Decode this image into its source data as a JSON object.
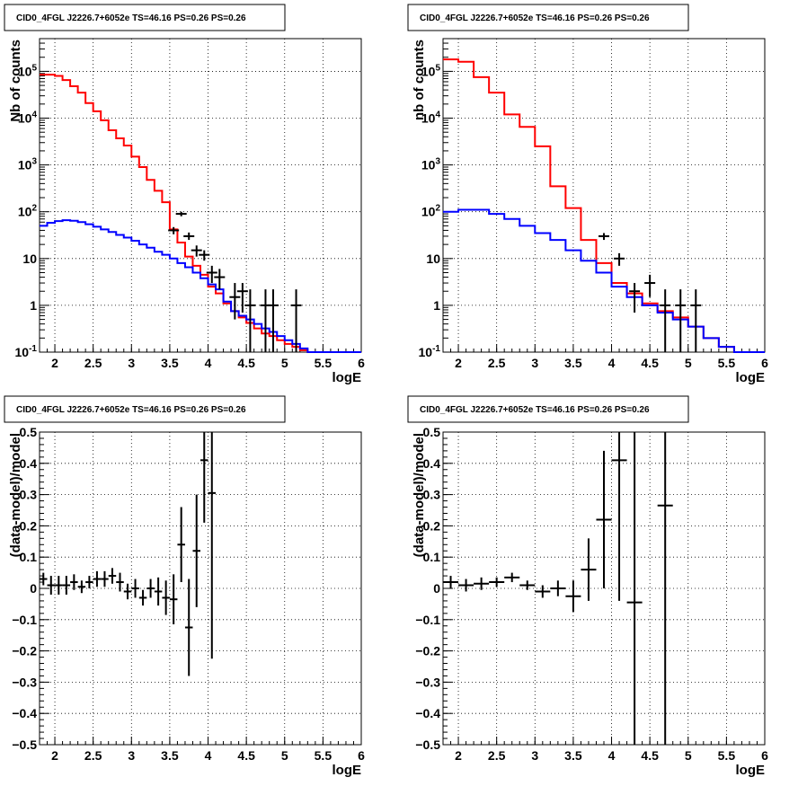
{
  "chart_data": [
    {
      "type": "step-histogram",
      "title": "CID0_4FGL J2226.7+6052e TS=46.16 PS=0.26 PS=0.26",
      "xlabel": "logE",
      "ylabel": "Nb of counts",
      "xlim": [
        1.8,
        6.0
      ],
      "ylim": [
        0.1,
        500000
      ],
      "yscale": "log",
      "xticks": [
        "2",
        "2.5",
        "3",
        "3.5",
        "4",
        "4.5",
        "5",
        "5.5",
        "6"
      ],
      "yticks": [
        "10^{-1}",
        "1",
        "10",
        "10^{2}",
        "10^{3}",
        "10^{4}",
        "10^{5}"
      ],
      "grid": true,
      "bin_edges": [
        1.8,
        1.9,
        2.0,
        2.1,
        2.2,
        2.3,
        2.4,
        2.5,
        2.6,
        2.7,
        2.8,
        2.9,
        3.0,
        3.1,
        3.2,
        3.3,
        3.4,
        3.5,
        3.6,
        3.7,
        3.8,
        3.9,
        4.0,
        4.1,
        4.2,
        4.3,
        4.4,
        4.5,
        4.6,
        4.7,
        4.8,
        4.9,
        5.0,
        5.1,
        5.2,
        5.3,
        5.4,
        5.5,
        5.6,
        5.7,
        5.8,
        5.9,
        6.0
      ],
      "series": [
        {
          "color": "#ff0000",
          "values": [
            85000,
            85000,
            80000,
            65000,
            48000,
            35000,
            21000,
            14000,
            9000,
            5500,
            3700,
            2600,
            1500,
            900,
            480,
            280,
            160,
            42,
            22,
            11,
            7,
            4.5,
            2.5,
            1.8,
            1.1,
            0.75,
            0.55,
            0.42,
            0.32,
            0.25,
            0.22,
            0.18,
            0.15,
            0.13,
            0.11,
            0.1,
            0.1,
            0.1,
            0.1,
            0.1,
            0.1,
            0.1
          ]
        },
        {
          "color": "#0000ff",
          "values": [
            50,
            58,
            63,
            66,
            64,
            60,
            54,
            48,
            42,
            37,
            32,
            28,
            24,
            20,
            17,
            14,
            12,
            10,
            8,
            6.5,
            5,
            3.8,
            2.8,
            2.2,
            1.2,
            0.75,
            0.6,
            0.5,
            0.4,
            0.32,
            0.27,
            0.22,
            0.18,
            0.15,
            0.12,
            0.1,
            0.1,
            0.1,
            0.1,
            0.1,
            0.1,
            0.1
          ]
        }
      ],
      "data_points": [
        {
          "x": 3.55,
          "y": 40,
          "err_low": 33,
          "err_high": 47
        },
        {
          "x": 3.65,
          "y": 90,
          "err_low": 80,
          "err_high": 100
        },
        {
          "x": 3.75,
          "y": 30,
          "err_low": 25,
          "err_high": 36
        },
        {
          "x": 3.85,
          "y": 15,
          "err_low": 11,
          "err_high": 19
        },
        {
          "x": 3.95,
          "y": 12,
          "err_low": 9,
          "err_high": 15
        },
        {
          "x": 4.05,
          "y": 5,
          "err_low": 3,
          "err_high": 7
        },
        {
          "x": 4.15,
          "y": 4,
          "err_low": 2.2,
          "err_high": 6
        },
        {
          "x": 4.35,
          "y": 1.5,
          "err_low": 0.5,
          "err_high": 3
        },
        {
          "x": 4.45,
          "y": 2,
          "err_low": 0.7,
          "err_high": 3
        },
        {
          "x": 4.55,
          "y": 1,
          "err_low": 0.1,
          "err_high": 2.2
        },
        {
          "x": 4.75,
          "y": 1,
          "err_low": 0.1,
          "err_high": 2.2
        },
        {
          "x": 4.85,
          "y": 1,
          "err_low": 0.1,
          "err_high": 2.2
        },
        {
          "x": 5.15,
          "y": 1,
          "err_low": 0.1,
          "err_high": 2.2
        }
      ]
    },
    {
      "type": "step-histogram",
      "title": "CID0_4FGL J2226.7+6052e TS=46.16 PS=0.26 PS=0.26",
      "xlabel": "logE",
      "ylabel": "nb of counts",
      "xlim": [
        1.8,
        6.0
      ],
      "ylim": [
        0.1,
        500000
      ],
      "yscale": "log",
      "xticks": [
        "2",
        "2.5",
        "3",
        "3.5",
        "4",
        "4.5",
        "5",
        "5.5",
        "6"
      ],
      "yticks": [
        "10^{-1}",
        "1",
        "10",
        "10^{2}",
        "10^{3}",
        "10^{4}",
        "10^{5}"
      ],
      "grid": true,
      "bin_edges": [
        1.8,
        2.0,
        2.2,
        2.4,
        2.6,
        2.8,
        3.0,
        3.2,
        3.4,
        3.6,
        3.8,
        4.0,
        4.2,
        4.4,
        4.6,
        4.8,
        5.0,
        5.2,
        5.4,
        5.6,
        5.8,
        6.0
      ],
      "series": [
        {
          "color": "#ff0000",
          "values": [
            180000,
            160000,
            75000,
            35000,
            12000,
            6500,
            2500,
            350,
            120,
            25,
            8,
            3,
            1.8,
            1.1,
            0.75,
            0.55,
            0.35,
            0.2,
            0.13,
            0.1,
            0.1
          ]
        },
        {
          "color": "#0000ff",
          "values": [
            100,
            110,
            110,
            90,
            70,
            50,
            35,
            25,
            15,
            9,
            5,
            2.5,
            1.5,
            1,
            0.7,
            0.5,
            0.35,
            0.2,
            0.13,
            0.1,
            0.1
          ]
        }
      ],
      "data_points": [
        {
          "x": 3.9,
          "y": 30,
          "err_low": 25,
          "err_high": 35
        },
        {
          "x": 4.1,
          "y": 10,
          "err_low": 7,
          "err_high": 13
        },
        {
          "x": 4.3,
          "y": 2,
          "err_low": 0.7,
          "err_high": 3
        },
        {
          "x": 4.5,
          "y": 3,
          "err_low": 1.5,
          "err_high": 4.5
        },
        {
          "x": 4.7,
          "y": 1,
          "err_low": 0.1,
          "err_high": 2.2
        },
        {
          "x": 4.9,
          "y": 1,
          "err_low": 0.1,
          "err_high": 2.2
        },
        {
          "x": 5.1,
          "y": 1,
          "err_low": 0.1,
          "err_high": 2.2
        }
      ]
    },
    {
      "type": "scatter-errorbars",
      "title": "CID0_4FGL J2226.7+6052e TS=46.16 PS=0.26 PS=0.26",
      "xlabel": "logE",
      "ylabel": "(data-model)/model",
      "xlim": [
        1.8,
        6.0
      ],
      "ylim": [
        -0.5,
        0.5
      ],
      "xticks": [
        "2",
        "2.5",
        "3",
        "3.5",
        "4",
        "4.5",
        "5",
        "5.5",
        "6"
      ],
      "yticks": [
        "-0.5",
        "-0.4",
        "-0.3",
        "-0.2",
        "-0.1",
        "0",
        "0.1",
        "0.2",
        "0.3",
        "0.4",
        "0.5"
      ],
      "grid": true,
      "xerr": 0.05,
      "points": [
        {
          "x": 1.85,
          "y": 0.03,
          "err": 0.02
        },
        {
          "x": 1.95,
          "y": 0.01,
          "err": 0.03
        },
        {
          "x": 2.05,
          "y": 0.01,
          "err": 0.03
        },
        {
          "x": 2.15,
          "y": 0.01,
          "err": 0.03
        },
        {
          "x": 2.25,
          "y": 0.02,
          "err": 0.025
        },
        {
          "x": 2.35,
          "y": 0.005,
          "err": 0.02
        },
        {
          "x": 2.45,
          "y": 0.02,
          "err": 0.02
        },
        {
          "x": 2.55,
          "y": 0.03,
          "err": 0.025
        },
        {
          "x": 2.65,
          "y": 0.03,
          "err": 0.025
        },
        {
          "x": 2.75,
          "y": 0.04,
          "err": 0.025
        },
        {
          "x": 2.85,
          "y": 0.02,
          "err": 0.03
        },
        {
          "x": 2.95,
          "y": -0.01,
          "err": 0.025
        },
        {
          "x": 3.05,
          "y": 0.0,
          "err": 0.03
        },
        {
          "x": 3.15,
          "y": -0.03,
          "err": 0.025
        },
        {
          "x": 3.25,
          "y": 0.0,
          "err": 0.03
        },
        {
          "x": 3.35,
          "y": -0.01,
          "err": 0.045
        },
        {
          "x": 3.45,
          "y": -0.03,
          "err": 0.055
        },
        {
          "x": 3.55,
          "y": -0.035,
          "err": 0.08
        },
        {
          "x": 3.65,
          "y": 0.14,
          "err": 0.12
        },
        {
          "x": 3.75,
          "y": -0.125,
          "err": 0.155
        },
        {
          "x": 3.85,
          "y": 0.12,
          "err": 0.18
        },
        {
          "x": 3.95,
          "y": 0.41,
          "err": 0.2
        },
        {
          "x": 4.05,
          "y": 0.305,
          "err": 0.53
        }
      ]
    },
    {
      "type": "scatter-errorbars",
      "title": "CID0_4FGL J2226.7+6052e TS=46.16 PS=0.26 PS=0.26",
      "xlabel": "logE",
      "ylabel": "(data-model)/model",
      "xlim": [
        1.8,
        6.0
      ],
      "ylim": [
        -0.5,
        0.5
      ],
      "xticks": [
        "2",
        "2.5",
        "3",
        "3.5",
        "4",
        "4.5",
        "5",
        "5.5",
        "6"
      ],
      "yticks": [
        "-0.5",
        "-0.4",
        "-0.3",
        "-0.2",
        "-0.1",
        "0",
        "0.1",
        "0.2",
        "0.3",
        "0.4",
        "0.5"
      ],
      "grid": true,
      "xerr": 0.1,
      "points": [
        {
          "x": 1.9,
          "y": 0.02,
          "err": 0.02
        },
        {
          "x": 2.1,
          "y": 0.01,
          "err": 0.02
        },
        {
          "x": 2.3,
          "y": 0.015,
          "err": 0.02
        },
        {
          "x": 2.5,
          "y": 0.02,
          "err": 0.015
        },
        {
          "x": 2.7,
          "y": 0.035,
          "err": 0.015
        },
        {
          "x": 2.9,
          "y": 0.01,
          "err": 0.015
        },
        {
          "x": 3.1,
          "y": -0.01,
          "err": 0.02
        },
        {
          "x": 3.3,
          "y": 0.0,
          "err": 0.025
        },
        {
          "x": 3.5,
          "y": -0.025,
          "err": 0.05
        },
        {
          "x": 3.7,
          "y": 0.06,
          "err": 0.1
        },
        {
          "x": 3.9,
          "y": 0.22,
          "err": 0.22
        },
        {
          "x": 4.1,
          "y": 0.41,
          "err": 0.45
        },
        {
          "x": 4.3,
          "y": -0.045,
          "err": 0.6
        },
        {
          "x": 4.7,
          "y": 0.265,
          "err": 0.8
        }
      ]
    }
  ]
}
